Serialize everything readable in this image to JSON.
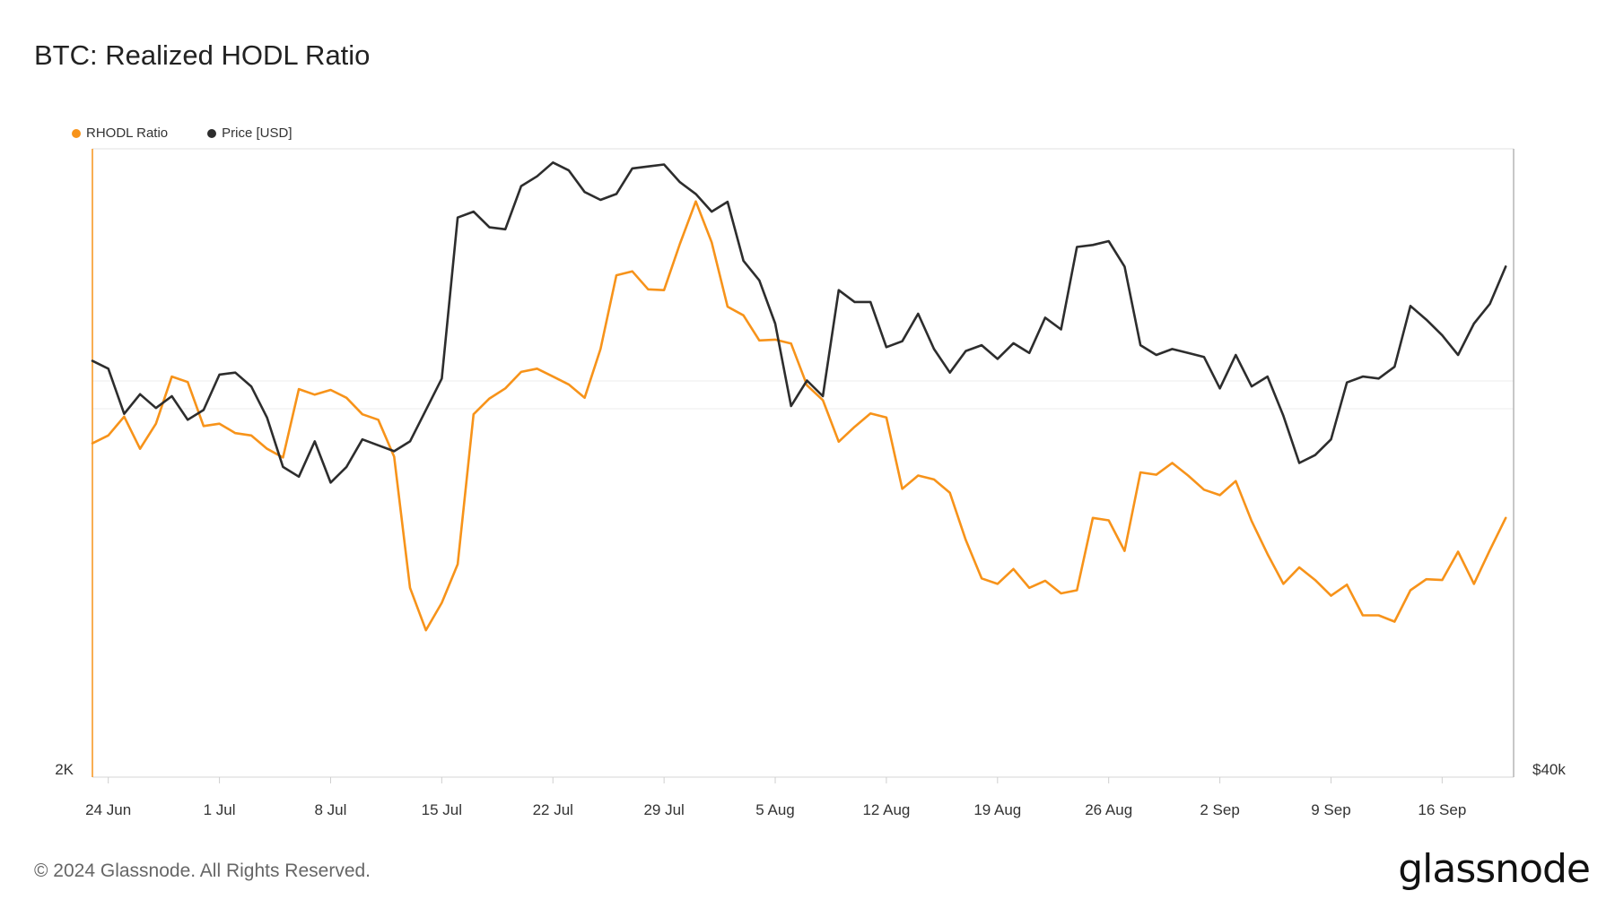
{
  "title": "BTC: Realized HODL Ratio",
  "footer": "© 2024 Glassnode. All Rights Reserved.",
  "brand": "glassnode",
  "colors": {
    "rhodl": "#f7931a",
    "price": "#2d2d2d",
    "grid": "#ececec"
  },
  "chart_data": {
    "type": "line",
    "title": "BTC: Realized HODL Ratio",
    "legend_position": "top-left",
    "x_ticks": [
      "24 Jun",
      "1 Jul",
      "8 Jul",
      "15 Jul",
      "22 Jul",
      "29 Jul",
      "5 Aug",
      "12 Aug",
      "19 Aug",
      "26 Aug",
      "2 Sep",
      "9 Sep",
      "16 Sep"
    ],
    "y_left": {
      "tick_labels": [
        "2K"
      ],
      "ylim": [
        2000,
        2800
      ]
    },
    "y_right": {
      "tick_labels": [
        "$40k"
      ],
      "ylim": [
        40000,
        72000
      ]
    },
    "series": [
      {
        "name": "RHODL Ratio",
        "axis": "left",
        "color": "#f7931a",
        "values": [
          2425,
          2435,
          2459,
          2418,
          2450,
          2510,
          2503,
          2447,
          2450,
          2438,
          2435,
          2418,
          2407,
          2494,
          2487,
          2493,
          2483,
          2462,
          2455,
          2408,
          2241,
          2187,
          2222,
          2271,
          2462,
          2482,
          2495,
          2516,
          2520,
          2510,
          2500,
          2483,
          2545,
          2639,
          2644,
          2621,
          2620,
          2679,
          2733,
          2681,
          2599,
          2588,
          2556,
          2557,
          2552,
          2499,
          2480,
          2427,
          2446,
          2463,
          2458,
          2367,
          2384,
          2379,
          2362,
          2302,
          2253,
          2246,
          2265,
          2241,
          2250,
          2234,
          2238,
          2330,
          2327,
          2288,
          2388,
          2385,
          2400,
          2384,
          2366,
          2359,
          2377,
          2326,
          2284,
          2246,
          2267,
          2251,
          2231,
          2245,
          2206,
          2206,
          2198,
          2238,
          2252,
          2251,
          2287,
          2246,
          2289,
          2330
        ]
      },
      {
        "name": "Price [USD]",
        "axis": "right",
        "color": "#2d2d2d",
        "values": [
          61200,
          60800,
          58500,
          59500,
          58800,
          59400,
          58200,
          58700,
          60500,
          60600,
          59900,
          58300,
          55800,
          55300,
          57100,
          55000,
          55800,
          57200,
          56900,
          56600,
          57100,
          58700,
          60300,
          68500,
          68800,
          68000,
          67900,
          70100,
          70600,
          71300,
          70900,
          69800,
          69400,
          69700,
          71000,
          71100,
          71200,
          70300,
          69700,
          68800,
          69300,
          66300,
          65300,
          63100,
          58900,
          60200,
          59400,
          64800,
          64200,
          64200,
          61900,
          62200,
          63600,
          61800,
          60600,
          61700,
          62000,
          61300,
          62100,
          61600,
          63400,
          62800,
          67000,
          67100,
          67300,
          66000,
          62000,
          61500,
          61800,
          61600,
          61400,
          59800,
          61500,
          59900,
          60400,
          58400,
          56000,
          56400,
          57200,
          60100,
          60400,
          60300,
          60900,
          64000,
          63300,
          62500,
          61500,
          63100,
          64100,
          66000
        ]
      }
    ]
  }
}
